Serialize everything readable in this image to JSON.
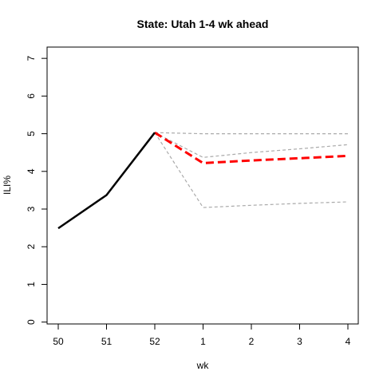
{
  "chart_data": {
    "type": "line",
    "title": "State: Utah 1-4 wk ahead",
    "xlabel": "wk",
    "ylabel": "ILI%",
    "categories": [
      "50",
      "51",
      "52",
      "1",
      "2",
      "3",
      "4"
    ],
    "yticks": [
      "0",
      "1",
      "2",
      "3",
      "4",
      "5",
      "6",
      "7"
    ],
    "ylim": [
      -0.05,
      7.3
    ],
    "grid": false,
    "series": [
      {
        "values": [
          2.49,
          3.37,
          5.03,
          null,
          null,
          null,
          null
        ],
        "color": "#000000",
        "style": "solid"
      },
      {
        "values": [
          null,
          null,
          5.03,
          5.0,
          5.0,
          5.0,
          5.0
        ],
        "color": "#aaaaaa",
        "style": "dashed"
      },
      {
        "values": [
          null,
          null,
          5.03,
          4.37,
          4.5,
          4.6,
          4.71
        ],
        "color": "#aaaaaa",
        "style": "dashed"
      },
      {
        "values": [
          null,
          null,
          5.03,
          3.04,
          3.1,
          3.15,
          3.19
        ],
        "color": "#aaaaaa",
        "style": "dashed"
      },
      {
        "values": [
          null,
          null,
          5.03,
          4.22,
          4.29,
          4.35,
          4.41
        ],
        "color": "#ff0000",
        "style": "dashed-bold"
      }
    ]
  }
}
